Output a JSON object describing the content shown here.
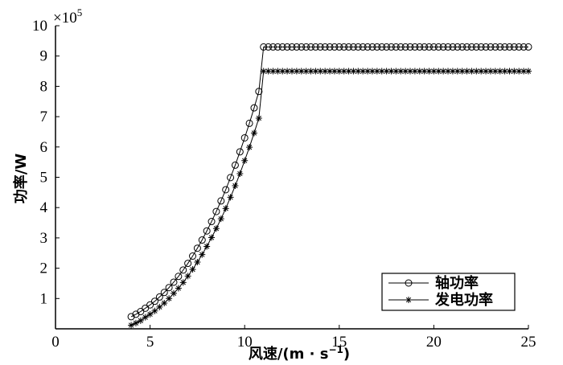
{
  "chart_data": {
    "type": "line",
    "xlabel": "风速/(m · s",
    "xlabel_sup": "−1",
    "xlabel_end": ")",
    "ylabel": "功率/W",
    "y_multiplier": "×10",
    "y_multiplier_exp": "5",
    "xlim": [
      0,
      25
    ],
    "xticks": [
      0,
      5,
      10,
      15,
      20,
      25
    ],
    "ylim": [
      0,
      10
    ],
    "yticks": [
      1,
      2,
      3,
      4,
      5,
      6,
      7,
      8,
      9,
      10
    ],
    "legend": "lower right",
    "x": [
      4,
      4.25,
      4.5,
      4.75,
      5,
      5.25,
      5.5,
      5.75,
      6,
      6.25,
      6.5,
      6.75,
      7,
      7.25,
      7.5,
      7.75,
      8,
      8.25,
      8.5,
      8.75,
      9,
      9.25,
      9.5,
      9.75,
      10,
      10.25,
      10.5,
      10.75,
      11,
      11.25,
      11.5,
      11.75,
      12,
      12.25,
      12.5,
      12.75,
      13,
      13.25,
      13.5,
      13.75,
      14,
      14.25,
      14.5,
      14.75,
      15,
      15.25,
      15.5,
      15.75,
      16,
      16.25,
      16.5,
      16.75,
      17,
      17.25,
      17.5,
      17.75,
      18,
      18.25,
      18.5,
      18.75,
      19,
      19.25,
      19.5,
      19.75,
      20,
      20.25,
      20.5,
      20.75,
      21,
      21.25,
      21.5,
      21.75,
      22,
      22.25,
      22.5,
      22.75,
      23,
      23.25,
      23.5,
      23.75,
      24,
      24.25,
      24.5,
      24.75,
      25
    ],
    "series": [
      {
        "name": "轴功率",
        "marker": "circle",
        "color": "#000000",
        "values": [
          0.4,
          0.48,
          0.57,
          0.68,
          0.79,
          0.91,
          1.05,
          1.2,
          1.36,
          1.54,
          1.73,
          1.94,
          2.16,
          2.4,
          2.66,
          2.93,
          3.23,
          3.54,
          3.87,
          4.22,
          4.59,
          4.99,
          5.4,
          5.84,
          6.3,
          6.78,
          7.29,
          7.83,
          9.3,
          9.3,
          9.3,
          9.3,
          9.3,
          9.3,
          9.3,
          9.3,
          9.3,
          9.3,
          9.3,
          9.3,
          9.3,
          9.3,
          9.3,
          9.3,
          9.3,
          9.3,
          9.3,
          9.3,
          9.3,
          9.3,
          9.3,
          9.3,
          9.3,
          9.3,
          9.3,
          9.3,
          9.3,
          9.3,
          9.3,
          9.3,
          9.3,
          9.3,
          9.3,
          9.3,
          9.3,
          9.3,
          9.3,
          9.3,
          9.3,
          9.3,
          9.3,
          9.3,
          9.3,
          9.3,
          9.3,
          9.3,
          9.3,
          9.3,
          9.3,
          9.3,
          9.3,
          9.3,
          9.3,
          9.3,
          9.3
        ]
      },
      {
        "name": "发电功率",
        "marker": "asterisk",
        "color": "#000000",
        "values": [
          0.12,
          0.19,
          0.27,
          0.38,
          0.48,
          0.59,
          0.72,
          0.85,
          1.0,
          1.17,
          1.34,
          1.53,
          1.74,
          1.96,
          2.2,
          2.45,
          2.72,
          3.01,
          3.31,
          3.63,
          3.97,
          4.34,
          4.72,
          5.12,
          5.55,
          5.99,
          6.46,
          6.95,
          8.5,
          8.5,
          8.5,
          8.5,
          8.5,
          8.5,
          8.5,
          8.5,
          8.5,
          8.5,
          8.5,
          8.5,
          8.5,
          8.5,
          8.5,
          8.5,
          8.5,
          8.5,
          8.5,
          8.5,
          8.5,
          8.5,
          8.5,
          8.5,
          8.5,
          8.5,
          8.5,
          8.5,
          8.5,
          8.5,
          8.5,
          8.5,
          8.5,
          8.5,
          8.5,
          8.5,
          8.5,
          8.5,
          8.5,
          8.5,
          8.5,
          8.5,
          8.5,
          8.5,
          8.5,
          8.5,
          8.5,
          8.5,
          8.5,
          8.5,
          8.5,
          8.5,
          8.5,
          8.5,
          8.5,
          8.5,
          8.5
        ]
      }
    ]
  }
}
